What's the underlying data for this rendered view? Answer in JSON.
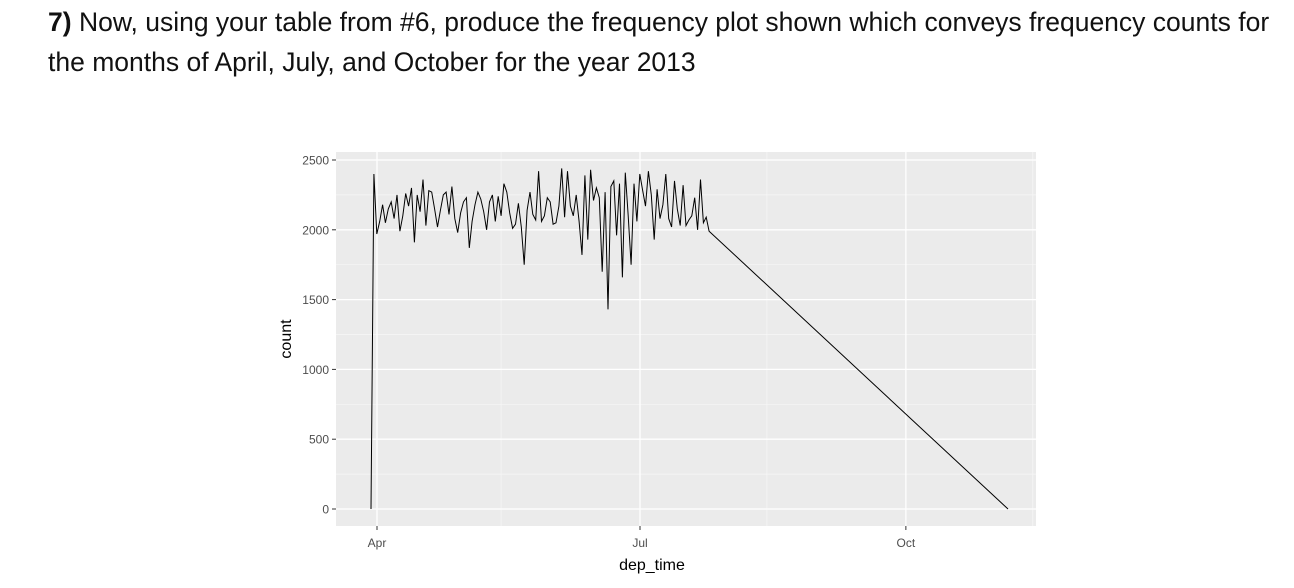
{
  "question": {
    "number": "7)",
    "text": " Now, using your table from #6, produce the frequency plot shown which conveys frequency counts for the months of April, July, and October for the year 2013"
  },
  "chart_data": {
    "type": "line",
    "xlabel": "dep_time",
    "ylabel": "count",
    "x_ticks": [
      "Apr",
      "Jul",
      "Oct"
    ],
    "y_ticks": [
      0,
      500,
      1000,
      1500,
      2000,
      2500
    ],
    "ylim": [
      0,
      2500
    ],
    "grid": true,
    "background": "#ebebeb",
    "line_color": "#000000",
    "series": [
      {
        "x_start": "2013-04-01",
        "x_step": "1 day",
        "values": [
          0,
          2400,
          1970,
          2060,
          2180,
          2050,
          2150,
          2200,
          2080,
          2250,
          1990,
          2100,
          2260,
          2170,
          2300,
          1910,
          2250,
          2130,
          2360,
          2030,
          2280,
          2270,
          2150,
          2020,
          2140,
          2250,
          2270,
          2110,
          2310,
          2080,
          1980,
          2120,
          2200,
          2230,
          1870,
          2060,
          2180,
          2270,
          2220,
          2130,
          2000,
          2200,
          2250,
          2060,
          2240,
          2100,
          2330,
          2270,
          2120,
          2010,
          2040,
          2190,
          2020,
          1750,
          2140,
          2270,
          2110,
          2070,
          2420,
          2060,
          2100,
          2230,
          2200,
          2040,
          2050,
          2170,
          2440,
          2090,
          2420,
          2170,
          2100,
          2250,
          2060,
          1820,
          2390,
          1930,
          2430,
          2210,
          2300,
          2230,
          1700,
          2270,
          1430,
          2310,
          2350,
          1960,
          2330,
          1660,
          2410,
          2100,
          1750,
          2330,
          2060,
          2400,
          2280,
          2170,
          2420,
          2250,
          1930,
          2290,
          2080,
          2180,
          2400,
          2080,
          2020,
          2350,
          2150,
          2030,
          2320,
          2030,
          2070,
          2100,
          2230,
          2000,
          2360,
          2050,
          2090,
          1990,
          0
        ]
      }
    ]
  }
}
